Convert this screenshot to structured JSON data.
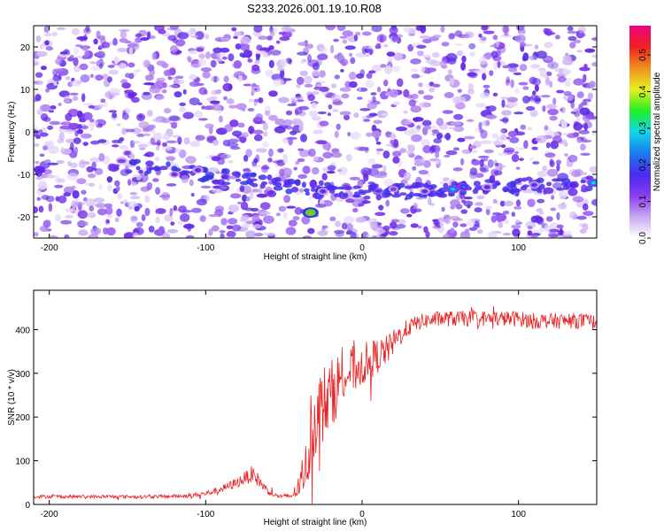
{
  "page_title": "S233.2026.001.19.10.R08",
  "chart_data": [
    {
      "type": "heatmap",
      "xlabel": "Height of straight line (km)",
      "ylabel": "Frequency (Hz)",
      "xlim": [
        -210,
        150
      ],
      "ylim": [
        -25,
        25
      ],
      "xticks": [
        "-200",
        "-100",
        "0",
        "100"
      ],
      "xtick_values": [
        -200,
        -100,
        0,
        100
      ],
      "yticks": [
        "20",
        "10",
        "0",
        "-10",
        "-20"
      ],
      "ytick_values": [
        20,
        10,
        0,
        -10,
        -20
      ],
      "colorbar": {
        "label": "Normalized spectral amplitude",
        "range": [
          0,
          0.58
        ],
        "ticks": [
          "0.0",
          "0.1",
          "0.2",
          "0.3",
          "0.4",
          "0.5"
        ],
        "tick_values": [
          0.0,
          0.1,
          0.2,
          0.3,
          0.4,
          0.5
        ],
        "colors": [
          "#ffffff",
          "#c8a8f0",
          "#8a3cf0",
          "#4a2af0",
          "#1a7cf0",
          "#10d8e8",
          "#20f020",
          "#e8f020",
          "#f09020",
          "#f02020",
          "#f00080"
        ]
      },
      "features": [
        {
          "x": -120,
          "y": -10,
          "amplitude": 0.15
        },
        {
          "x": -105,
          "y": -9,
          "amplitude": 0.18
        },
        {
          "x": -150,
          "y": -5,
          "amplitude": 0.12
        },
        {
          "x": -68,
          "y": 10,
          "amplitude": 0.1
        },
        {
          "x": -33,
          "y": -19,
          "amplitude": 0.45
        },
        {
          "x": -28,
          "y": -15,
          "amplitude": 0.22
        },
        {
          "x": -25,
          "y": -14,
          "amplitude": 0.18
        },
        {
          "x": 20,
          "y": -13.5,
          "amplitude": 0.12
        },
        {
          "x": 40,
          "y": -14,
          "amplitude": 0.15
        },
        {
          "x": 58,
          "y": -13.5,
          "amplitude": 0.3
        },
        {
          "x": 65,
          "y": -13,
          "amplitude": 0.25
        },
        {
          "x": 80,
          "y": -13,
          "amplitude": 0.18
        },
        {
          "x": 110,
          "y": -12.5,
          "amplitude": 0.18
        },
        {
          "x": 135,
          "y": -12.5,
          "amplitude": 0.2
        },
        {
          "x": 148,
          "y": -12,
          "amplitude": 0.28
        }
      ],
      "ridge": {
        "x": [
          -150,
          -120,
          -100,
          -80,
          -60,
          -40,
          -20,
          0,
          20,
          40,
          60,
          80,
          100,
          120,
          150
        ],
        "y": [
          -8,
          -9,
          -10,
          -11,
          -12,
          -13,
          -13.5,
          -14,
          -14,
          -14,
          -13.5,
          -13,
          -12.5,
          -12.5,
          -12
        ]
      }
    },
    {
      "type": "line",
      "xlabel": "Height of straight line (km)",
      "ylabel": "SNR (10 * v/v)",
      "xlim": [
        -210,
        150
      ],
      "ylim": [
        0,
        490
      ],
      "xticks": [
        "-200",
        "-100",
        "0",
        "100"
      ],
      "xtick_values": [
        -200,
        -100,
        0,
        100
      ],
      "yticks": [
        "0",
        "100",
        "200",
        "300",
        "400"
      ],
      "ytick_values": [
        0,
        100,
        200,
        300,
        400
      ],
      "color": "#e82020",
      "x": [
        -210,
        -190,
        -170,
        -150,
        -130,
        -110,
        -100,
        -90,
        -80,
        -75,
        -70,
        -65,
        -60,
        -55,
        -50,
        -45,
        -40,
        -35,
        -30,
        -25,
        -20,
        -15,
        -10,
        -5,
        0,
        5,
        10,
        15,
        20,
        25,
        30,
        35,
        40,
        50,
        60,
        70,
        80,
        90,
        100,
        110,
        120,
        130,
        140,
        150
      ],
      "y": [
        18,
        18,
        18,
        18,
        18,
        20,
        25,
        35,
        50,
        60,
        70,
        50,
        30,
        20,
        18,
        20,
        40,
        100,
        200,
        230,
        250,
        280,
        300,
        310,
        320,
        330,
        340,
        350,
        370,
        390,
        405,
        415,
        420,
        425,
        425,
        425,
        425,
        425,
        425,
        420,
        420,
        420,
        420,
        415
      ],
      "noise": [
        4,
        4,
        4,
        4,
        4,
        5,
        6,
        8,
        12,
        15,
        20,
        14,
        8,
        5,
        5,
        8,
        25,
        60,
        90,
        90,
        80,
        70,
        60,
        55,
        50,
        45,
        40,
        35,
        30,
        25,
        20,
        18,
        18,
        18,
        18,
        18,
        18,
        18,
        18,
        18,
        18,
        18,
        18,
        18
      ]
    }
  ]
}
